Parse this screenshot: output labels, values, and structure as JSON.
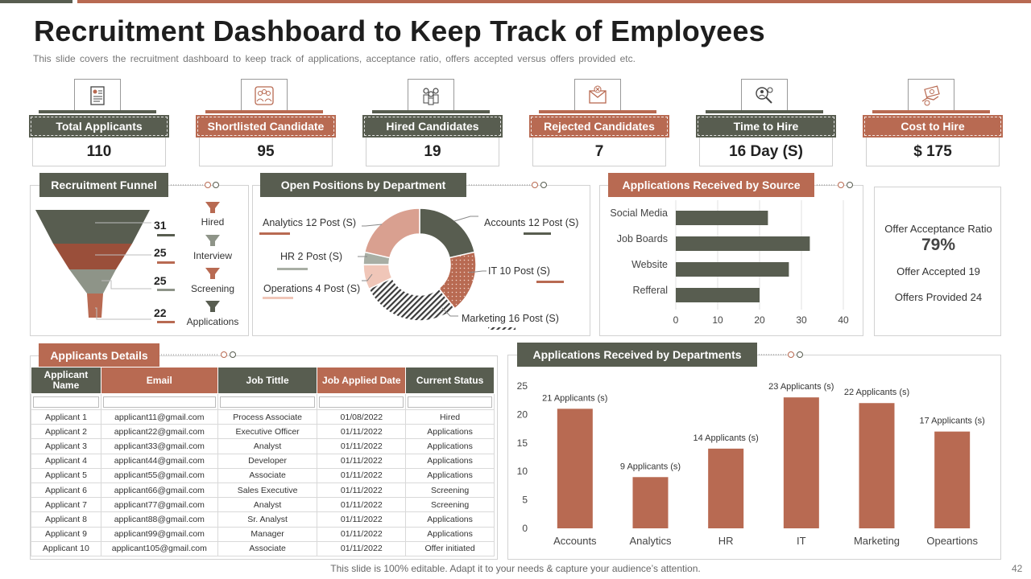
{
  "header": {
    "title": "Recruitment Dashboard to Keep Track of Employees",
    "subtitle": "This slide covers the recruitment dashboard to keep track of applications, acceptance ratio, offers accepted versus offers provided etc."
  },
  "kpis": [
    {
      "label": "Total Applicants",
      "value": "110",
      "icon": "resume-document-icon",
      "color": "#585d50"
    },
    {
      "label": "Shortlisted Candidate",
      "value": "95",
      "icon": "shortlist-people-icon",
      "color": "#b86a52"
    },
    {
      "label": "Hired Candidates",
      "value": "19",
      "icon": "team-group-icon",
      "color": "#585d50"
    },
    {
      "label": "Rejected Candidates",
      "value": "7",
      "icon": "rejected-envelope-icon",
      "color": "#b86a52"
    },
    {
      "label": "Time to Hire",
      "value": "16 Day (S)",
      "icon": "search-candidate-icon",
      "color": "#585d50"
    },
    {
      "label": "Cost to Hire",
      "value": "$ 175",
      "icon": "money-cost-icon",
      "color": "#b86a52"
    }
  ],
  "funnel": {
    "title": "Recruitment Funnel",
    "values": [
      "31",
      "25",
      "25",
      "22"
    ],
    "stages": [
      "Hired",
      "Interview",
      "Screening",
      "Applications"
    ]
  },
  "positions": {
    "title": "Open Positions by Department",
    "labels": {
      "analytics": "Analytics 12 Post (S)",
      "hr": "HR 2 Post (S)",
      "operations": "Operations 4 Post (S)",
      "accounts": "Accounts 12 Post (S)",
      "it": "IT 10 Post (S)",
      "marketing": "Marketing 16 Post (S)"
    }
  },
  "sources": {
    "title": "Applications Received by Source"
  },
  "offers": {
    "ratio_label": "Offer Acceptance Ratio",
    "ratio_value": "79%",
    "accepted": "Offer Accepted 19",
    "provided": "Offers Provided 24"
  },
  "applicants": {
    "title": "Applicants Details",
    "headers": [
      "Applicant Name",
      "Email",
      "Job Tittle",
      "Job Applied Date",
      "Current Status"
    ],
    "rows": [
      [
        "Applicant 1",
        "applicant11@gmail.com",
        "Process Associate",
        "01/08/2022",
        "Hired"
      ],
      [
        "Applicant 2",
        "applicant22@gmail.com",
        "Executive Officer",
        "01/11/2022",
        "Applications"
      ],
      [
        "Applicant 3",
        "applicant33@gmail.com",
        "Analyst",
        "01/11/2022",
        "Applications"
      ],
      [
        "Applicant 4",
        "applicant44@gmail.com",
        "Developer",
        "01/11/2022",
        "Applications"
      ],
      [
        "Applicant 5",
        "applicant55@gmail.com",
        "Associate",
        "01/11/2022",
        "Applications"
      ],
      [
        "Applicant 6",
        "applicant66@gmail.com",
        "Sales Executive",
        "01/11/2022",
        "Screening"
      ],
      [
        "Applicant 7",
        "applicant77@gmail.com",
        "Analyst",
        "01/11/2022",
        "Screening"
      ],
      [
        "Applicant 8",
        "applicant88@gmail.com",
        "Sr. Analyst",
        "01/11/2022",
        "Applications"
      ],
      [
        "Applicant 9",
        "applicant99@gmail.com",
        "Manager",
        "01/11/2022",
        "Applications"
      ],
      [
        "Applicant 10",
        "applicant105@gmail.com",
        "Associate",
        "01/11/2022",
        "Offer initiated"
      ]
    ]
  },
  "departments": {
    "title": "Applications Received by Departments"
  },
  "footer": {
    "note": "This slide is 100% editable. Adapt it to your needs & capture your audience’s attention.",
    "page": "42"
  },
  "colors": {
    "grey": "#585d50",
    "red": "#b86a52",
    "light_red": "#d9a090",
    "light_grey": "#a8aea4"
  },
  "chart_data": [
    {
      "type": "pie",
      "variant": "donut",
      "title": "Open Positions by Department",
      "categories": [
        "Accounts",
        "IT",
        "Marketing",
        "Operations",
        "HR",
        "Analytics"
      ],
      "values": [
        12,
        10,
        16,
        4,
        2,
        12
      ],
      "unit": "Post (S)"
    },
    {
      "type": "bar",
      "orientation": "horizontal",
      "title": "Applications Received by Source",
      "categories": [
        "Social Media",
        "Job Boards",
        "Website",
        "Refferal"
      ],
      "values": [
        22,
        32,
        27,
        20
      ],
      "xlim": [
        0,
        40
      ],
      "xticks": [
        0,
        10,
        20,
        30,
        40
      ]
    },
    {
      "type": "bar",
      "title": "Applications Received by Departments",
      "categories": [
        "Accounts",
        "Analytics",
        "HR",
        "IT",
        "Marketing",
        "Opeartions"
      ],
      "values": [
        21,
        9,
        14,
        23,
        22,
        17
      ],
      "data_labels": [
        "21 Applicants (s)",
        "9 Applicants (s)",
        "14 Applicants (s)",
        "23 Applicants (s)",
        "22 Applicants (s)",
        "17 Applicants (s)"
      ],
      "ylim": [
        0,
        25
      ],
      "yticks": [
        0,
        5,
        10,
        15,
        20,
        25
      ]
    }
  ]
}
